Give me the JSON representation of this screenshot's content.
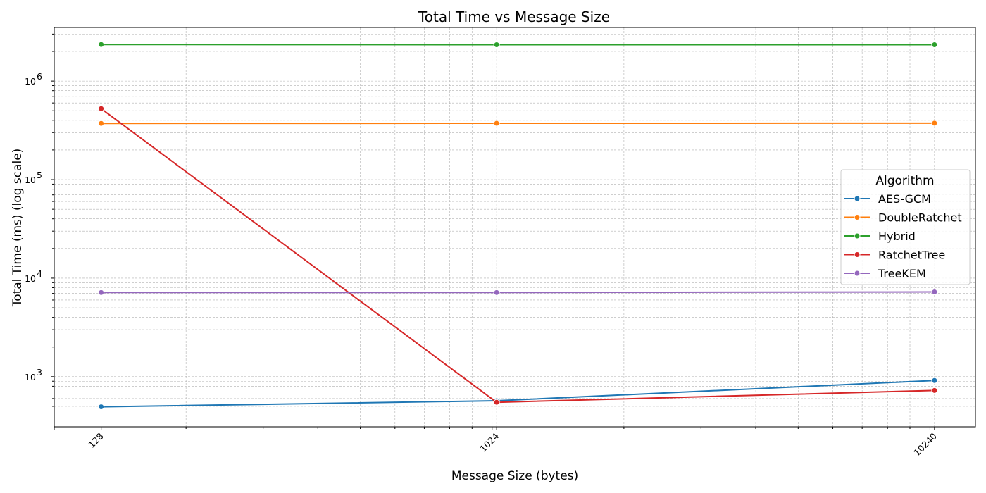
{
  "chart_data": {
    "type": "line",
    "title": "Total Time vs Message Size",
    "xlabel": "Message Size (bytes)",
    "ylabel": "Total Time (ms) (log scale)",
    "xscale": "log",
    "yscale": "log",
    "x": [
      128,
      1024,
      10240
    ],
    "x_tick_labels": [
      "128",
      "1024",
      "10240"
    ],
    "xlim": [
      100,
      12700
    ],
    "ylim": [
      310,
      3500000
    ],
    "y_major_ticks": [
      1000,
      10000,
      100000,
      1000000
    ],
    "y_tick_labels": [
      {
        "base": "10",
        "exp": "3"
      },
      {
        "base": "10",
        "exp": "4"
      },
      {
        "base": "10",
        "exp": "5"
      },
      {
        "base": "10",
        "exp": "6"
      }
    ],
    "grid": true,
    "legend_title": "Algorithm",
    "legend_position": "center-right",
    "series": [
      {
        "name": "AES-GCM",
        "color": "#1f77b4",
        "values": [
          495,
          570,
          915
        ]
      },
      {
        "name": "DoubleRatchet",
        "color": "#ff7f0e",
        "values": [
          372000,
          373000,
          374000
        ]
      },
      {
        "name": "Hybrid",
        "color": "#2ca02c",
        "values": [
          2350000,
          2340000,
          2340000
        ]
      },
      {
        "name": "RatchetTree",
        "color": "#d62728",
        "values": [
          525000,
          550,
          725
        ]
      },
      {
        "name": "TreeKEM",
        "color": "#9467bd",
        "values": [
          7150,
          7150,
          7250
        ]
      }
    ]
  }
}
